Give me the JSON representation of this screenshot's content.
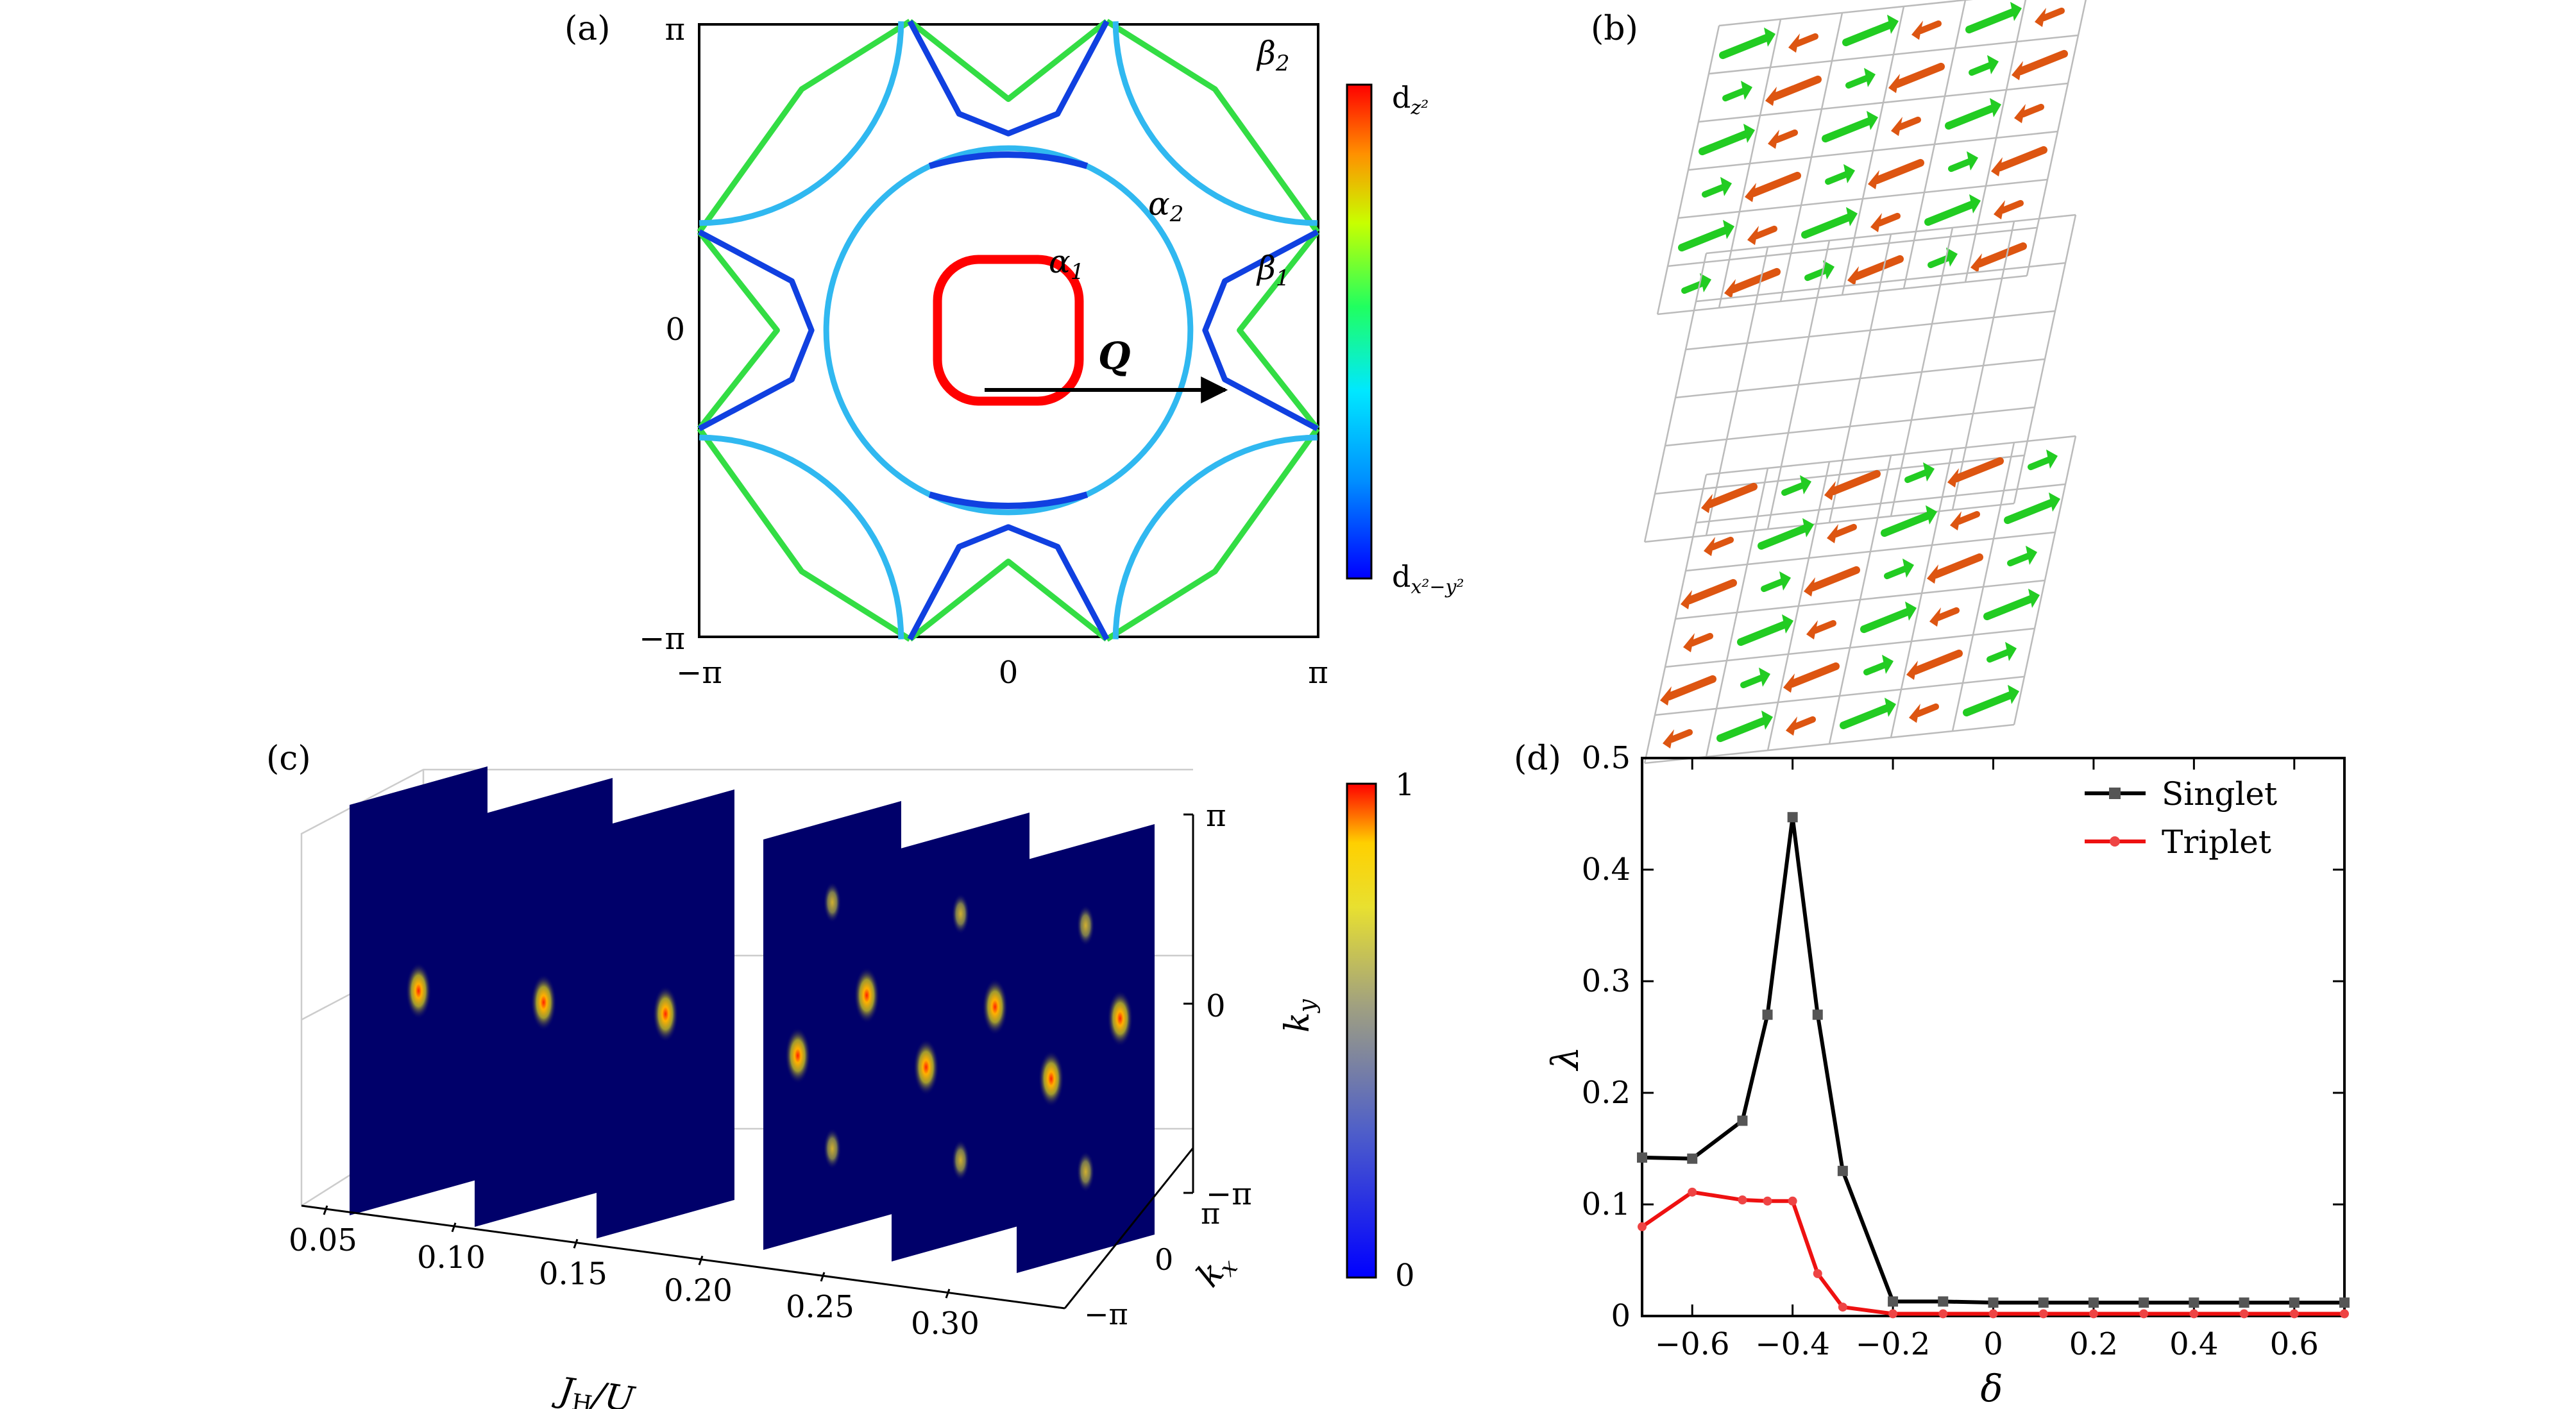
{
  "panels": {
    "a": {
      "label": "(a)",
      "ticks_x": [
        "−π",
        "0",
        "π"
      ],
      "ticks_y": [
        "π",
        "0",
        "−π"
      ],
      "band_labels": {
        "alpha1": "α",
        "alpha1_sub": "1",
        "alpha2": "α",
        "alpha2_sub": "2",
        "beta1": "β",
        "beta1_sub": "1",
        "beta2": "β",
        "beta2_sub": "2"
      },
      "vector_label": "Q",
      "colorbar_top": "d",
      "colorbar_top_sub": "z²",
      "colorbar_bottom": "d",
      "colorbar_bottom_sub": "x²−y²",
      "colors": {
        "dz2": "#ff0000",
        "dx2y2": "#0000ff"
      }
    },
    "b": {
      "label": "(b)",
      "colors": {
        "up": "#22cc22",
        "down": "#dd5511",
        "grid": "#bbbbbb"
      }
    },
    "c": {
      "label": "(c)",
      "xlabel_main": "J",
      "xlabel_sub": "H",
      "xlabel_tail": "/U",
      "x_ticks": [
        "0.05",
        "0.10",
        "0.15",
        "0.20",
        "0.25",
        "0.30"
      ],
      "ky_ticks": [
        "π",
        "0",
        "−π"
      ],
      "kx_ticks": [
        "π",
        "0",
        "−π"
      ],
      "ky_label": "k",
      "ky_sub": "y",
      "kx_label": "k",
      "kx_sub": "x",
      "colorbar_ticks": [
        "1",
        "0"
      ],
      "colors": {
        "plane": "#00006a"
      }
    }
  },
  "chart_data": {
    "type": "line",
    "panel_label": "(d)",
    "xlabel": "δ",
    "ylabel": "λ",
    "xlim": [
      -0.7,
      0.7
    ],
    "ylim": [
      0,
      0.5
    ],
    "x_ticks": [
      -0.6,
      -0.4,
      -0.2,
      0,
      0.2,
      0.4,
      0.6
    ],
    "x_tick_labels": [
      "−0.6",
      "−0.4",
      "−0.2",
      "0",
      "0.2",
      "0.4",
      "0.6"
    ],
    "y_ticks": [
      0,
      0.1,
      0.2,
      0.3,
      0.4,
      0.5
    ],
    "y_tick_labels": [
      "0",
      "0.1",
      "0.2",
      "0.3",
      "0.4",
      "0.5"
    ],
    "legend_position": "top-right",
    "series": [
      {
        "name": "Singlet",
        "color": "#000000",
        "marker_color": "#555555",
        "x": [
          -0.7,
          -0.6,
          -0.5,
          -0.45,
          -0.4,
          -0.35,
          -0.3,
          -0.2,
          -0.1,
          0,
          0.1,
          0.2,
          0.3,
          0.4,
          0.5,
          0.6,
          0.7
        ],
        "y": [
          0.142,
          0.141,
          0.175,
          0.27,
          0.447,
          0.27,
          0.13,
          0.013,
          0.013,
          0.012,
          0.012,
          0.012,
          0.012,
          0.012,
          0.012,
          0.012,
          0.012
        ]
      },
      {
        "name": "Triplet",
        "color": "#ee1111",
        "marker_color": "#ee4444",
        "x": [
          -0.7,
          -0.6,
          -0.5,
          -0.45,
          -0.4,
          -0.35,
          -0.3,
          -0.2,
          -0.1,
          0,
          0.1,
          0.2,
          0.3,
          0.4,
          0.5,
          0.6,
          0.7
        ],
        "y": [
          0.08,
          0.111,
          0.104,
          0.103,
          0.103,
          0.038,
          0.008,
          0.002,
          0.002,
          0.002,
          0.002,
          0.002,
          0.002,
          0.002,
          0.002,
          0.002,
          0.002
        ]
      }
    ]
  }
}
